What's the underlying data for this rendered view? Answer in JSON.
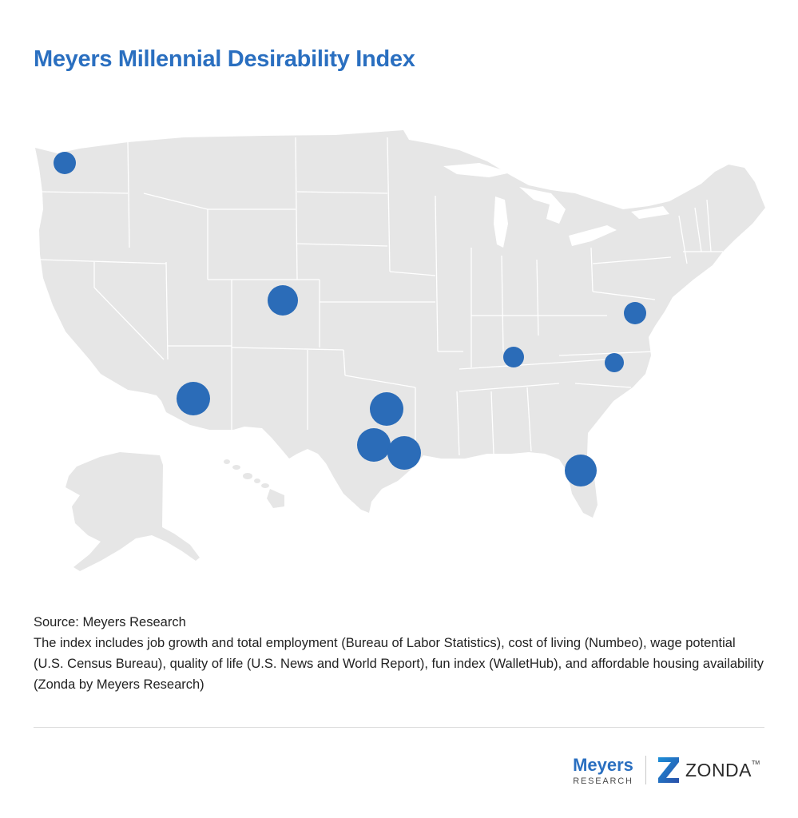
{
  "title": "Meyers Millennial Desirability Index",
  "colors": {
    "accent": "#2a6fc0",
    "marker": "#2b6cb8",
    "land": "#e6e6e6",
    "borders": "#ffffff"
  },
  "map": {
    "region": "United States (with Alaska and Hawaii insets)",
    "marker_icon": "city-marker-circle",
    "markers": [
      {
        "id": "seattle",
        "size": "small"
      },
      {
        "id": "denver",
        "size": "large"
      },
      {
        "id": "phoenix",
        "size": "large"
      },
      {
        "id": "dallas",
        "size": "large"
      },
      {
        "id": "austin",
        "size": "large"
      },
      {
        "id": "houston",
        "size": "large"
      },
      {
        "id": "nashville",
        "size": "small"
      },
      {
        "id": "raleigh",
        "size": "small"
      },
      {
        "id": "washington-dc",
        "size": "small"
      },
      {
        "id": "orlando",
        "size": "large"
      }
    ]
  },
  "source": {
    "label": "Source: Meyers Research",
    "note": "The index includes job growth and total employment (Bureau of Labor Statistics), cost of living (Numbeo), wage potential (U.S. Census Bureau), quality of life (U.S. News and World Report), fun index (WalletHub), and affordable housing availability (Zonda by Meyers Research)"
  },
  "logos": {
    "meyers_name": "Meyers",
    "meyers_sub": "RESEARCH",
    "zonda_name": "ZONDA",
    "zonda_tm": "TM"
  }
}
